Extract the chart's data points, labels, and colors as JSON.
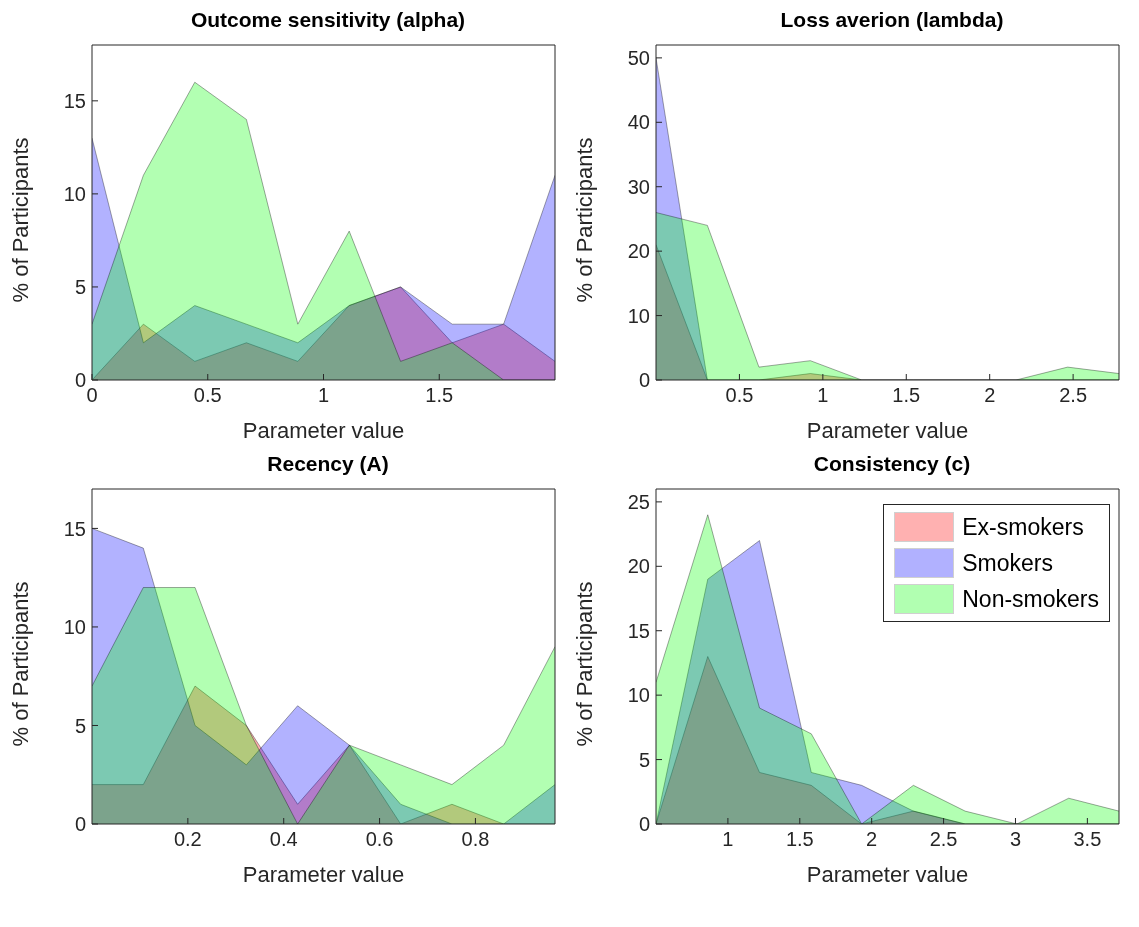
{
  "chart_data": [
    {
      "type": "area",
      "title": "Outcome sensitivity (alpha)",
      "xlabel": "Parameter value",
      "ylabel": "% of Participants",
      "x": [
        0,
        0.222,
        0.444,
        0.667,
        0.889,
        1.111,
        1.333,
        1.556,
        1.778,
        2.0
      ],
      "xlim": [
        0,
        2.0
      ],
      "xticks": [
        0,
        0.5,
        1,
        1.5
      ],
      "ylim": [
        0,
        18
      ],
      "yticks": [
        0,
        5,
        10,
        15
      ],
      "legend": false,
      "series": [
        {
          "color": "#ff0000",
          "values": [
            0,
            3,
            1,
            2,
            1,
            4,
            5,
            2,
            3,
            1
          ]
        },
        {
          "color": "#0000ff",
          "values": [
            13,
            2,
            4,
            3,
            2,
            4,
            5,
            3,
            3,
            11
          ]
        },
        {
          "color": "#00ff00",
          "values": [
            3,
            11,
            16,
            14,
            3,
            8,
            1,
            2,
            0,
            0
          ]
        }
      ]
    },
    {
      "type": "area",
      "title": "Loss averion (lambda)",
      "xlabel": "Parameter value",
      "ylabel": "% of Participants",
      "x": [
        0,
        0.308,
        0.617,
        0.925,
        1.233,
        1.542,
        1.85,
        2.158,
        2.467,
        2.775
      ],
      "xlim": [
        0,
        2.775
      ],
      "xticks": [
        0.5,
        1,
        1.5,
        2,
        2.5
      ],
      "ylim": [
        0,
        52
      ],
      "yticks": [
        0,
        10,
        20,
        30,
        40,
        50
      ],
      "legend": false,
      "series": [
        {
          "color": "#ff0000",
          "values": [
            21,
            0,
            0,
            1,
            0,
            0,
            0,
            0,
            0,
            0
          ]
        },
        {
          "color": "#0000ff",
          "values": [
            50,
            0,
            0,
            0,
            0,
            0,
            0,
            0,
            0,
            0
          ]
        },
        {
          "color": "#00ff00",
          "values": [
            26,
            24,
            2,
            3,
            0,
            0,
            0,
            0,
            2,
            1
          ]
        }
      ]
    },
    {
      "type": "area",
      "title": "Recency (A)",
      "xlabel": "Parameter value",
      "ylabel": "% of Participants",
      "x": [
        0,
        0.107,
        0.215,
        0.322,
        0.429,
        0.537,
        0.644,
        0.751,
        0.859,
        0.966
      ],
      "xlim": [
        0,
        0.966
      ],
      "xticks": [
        0.2,
        0.4,
        0.6,
        0.8
      ],
      "ylim": [
        0,
        17
      ],
      "yticks": [
        0,
        5,
        10,
        15
      ],
      "legend": false,
      "series": [
        {
          "color": "#ff0000",
          "values": [
            2,
            2,
            7,
            5,
            1,
            4,
            0,
            1,
            0,
            0
          ]
        },
        {
          "color": "#0000ff",
          "values": [
            15,
            14,
            5,
            3,
            6,
            4,
            1,
            0,
            0,
            2
          ]
        },
        {
          "color": "#00ff00",
          "values": [
            7,
            12,
            12,
            5,
            0,
            4,
            3,
            2,
            4,
            9
          ]
        }
      ]
    },
    {
      "type": "area",
      "title": "Consistency (c)",
      "xlabel": "Parameter value",
      "ylabel": "% of Participants",
      "x": [
        0.5,
        0.86,
        1.22,
        1.58,
        1.93,
        2.29,
        2.65,
        3.01,
        3.37,
        3.72
      ],
      "xlim": [
        0.5,
        3.72
      ],
      "xticks": [
        1,
        1.5,
        2,
        2.5,
        3,
        3.5
      ],
      "ylim": [
        0,
        26
      ],
      "yticks": [
        0,
        5,
        10,
        15,
        20,
        25
      ],
      "legend": "top right",
      "series": [
        {
          "name": "Ex-smokers",
          "color": "#ff0000",
          "values": [
            0,
            13,
            4,
            3,
            0,
            1,
            0,
            0,
            0,
            0
          ]
        },
        {
          "name": "Smokers",
          "color": "#0000ff",
          "values": [
            0,
            19,
            22,
            4,
            3,
            1,
            0,
            0,
            0,
            0
          ]
        },
        {
          "name": "Non-smokers",
          "color": "#00ff00",
          "values": [
            11,
            24,
            9,
            7,
            0,
            3,
            1,
            0,
            2,
            1
          ]
        }
      ]
    }
  ]
}
